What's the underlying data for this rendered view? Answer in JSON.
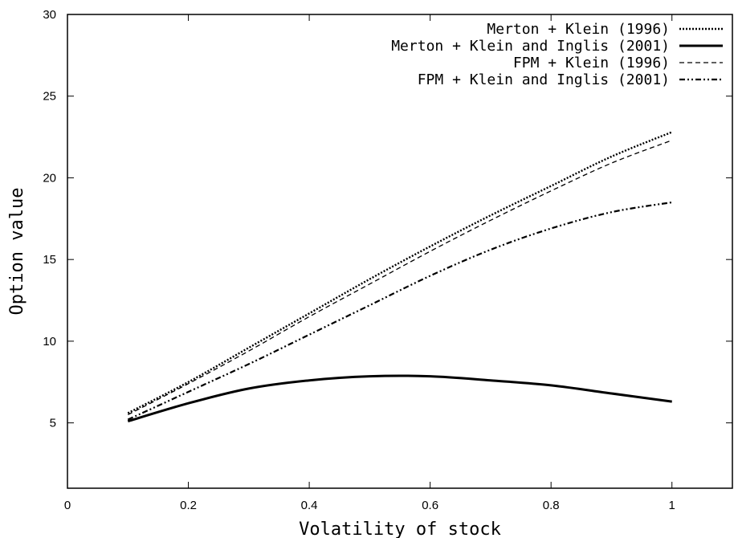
{
  "chart_data": {
    "type": "line",
    "xlabel": "Volatility of stock",
    "ylabel": "Option value",
    "xlim": [
      0,
      1.1
    ],
    "ylim": [
      1,
      30
    ],
    "xticks": [
      0,
      0.2,
      0.4,
      0.6,
      0.8,
      1
    ],
    "xtick_labels": [
      "0",
      "0.2",
      "0.4",
      "0.6",
      "0.8",
      "1"
    ],
    "yticks": [
      5,
      10,
      15,
      20,
      25,
      30
    ],
    "ytick_labels": [
      "5",
      "10",
      "15",
      "20",
      "25",
      "30"
    ],
    "grid": false,
    "legend_position": "top-right",
    "series": [
      {
        "name": "Merton + Klein (1996)",
        "style": "dotted",
        "x": [
          0.1,
          0.2,
          0.3,
          0.4,
          0.5,
          0.6,
          0.7,
          0.8,
          0.9,
          1.0
        ],
        "y": [
          5.6,
          7.5,
          9.6,
          11.7,
          13.8,
          15.8,
          17.7,
          19.5,
          21.3,
          22.8
        ]
      },
      {
        "name": "Merton + Klein and Inglis (2001)",
        "style": "solid",
        "x": [
          0.1,
          0.2,
          0.3,
          0.4,
          0.5,
          0.6,
          0.7,
          0.8,
          0.9,
          1.0
        ],
        "y": [
          5.1,
          6.2,
          7.1,
          7.6,
          7.85,
          7.85,
          7.6,
          7.3,
          6.8,
          6.3
        ]
      },
      {
        "name": "FPM + Klein (1996)",
        "style": "dashed",
        "x": [
          0.1,
          0.2,
          0.3,
          0.4,
          0.5,
          0.6,
          0.7,
          0.8,
          0.9,
          1.0
        ],
        "y": [
          5.5,
          7.4,
          9.4,
          11.5,
          13.5,
          15.5,
          17.4,
          19.2,
          20.9,
          22.3
        ]
      },
      {
        "name": "FPM + Klein and Inglis (2001)",
        "style": "dash-dot-dot",
        "x": [
          0.1,
          0.2,
          0.3,
          0.4,
          0.5,
          0.6,
          0.7,
          0.8,
          0.9,
          1.0
        ],
        "y": [
          5.2,
          6.9,
          8.6,
          10.4,
          12.2,
          14.0,
          15.6,
          16.9,
          17.9,
          18.5
        ]
      }
    ]
  }
}
